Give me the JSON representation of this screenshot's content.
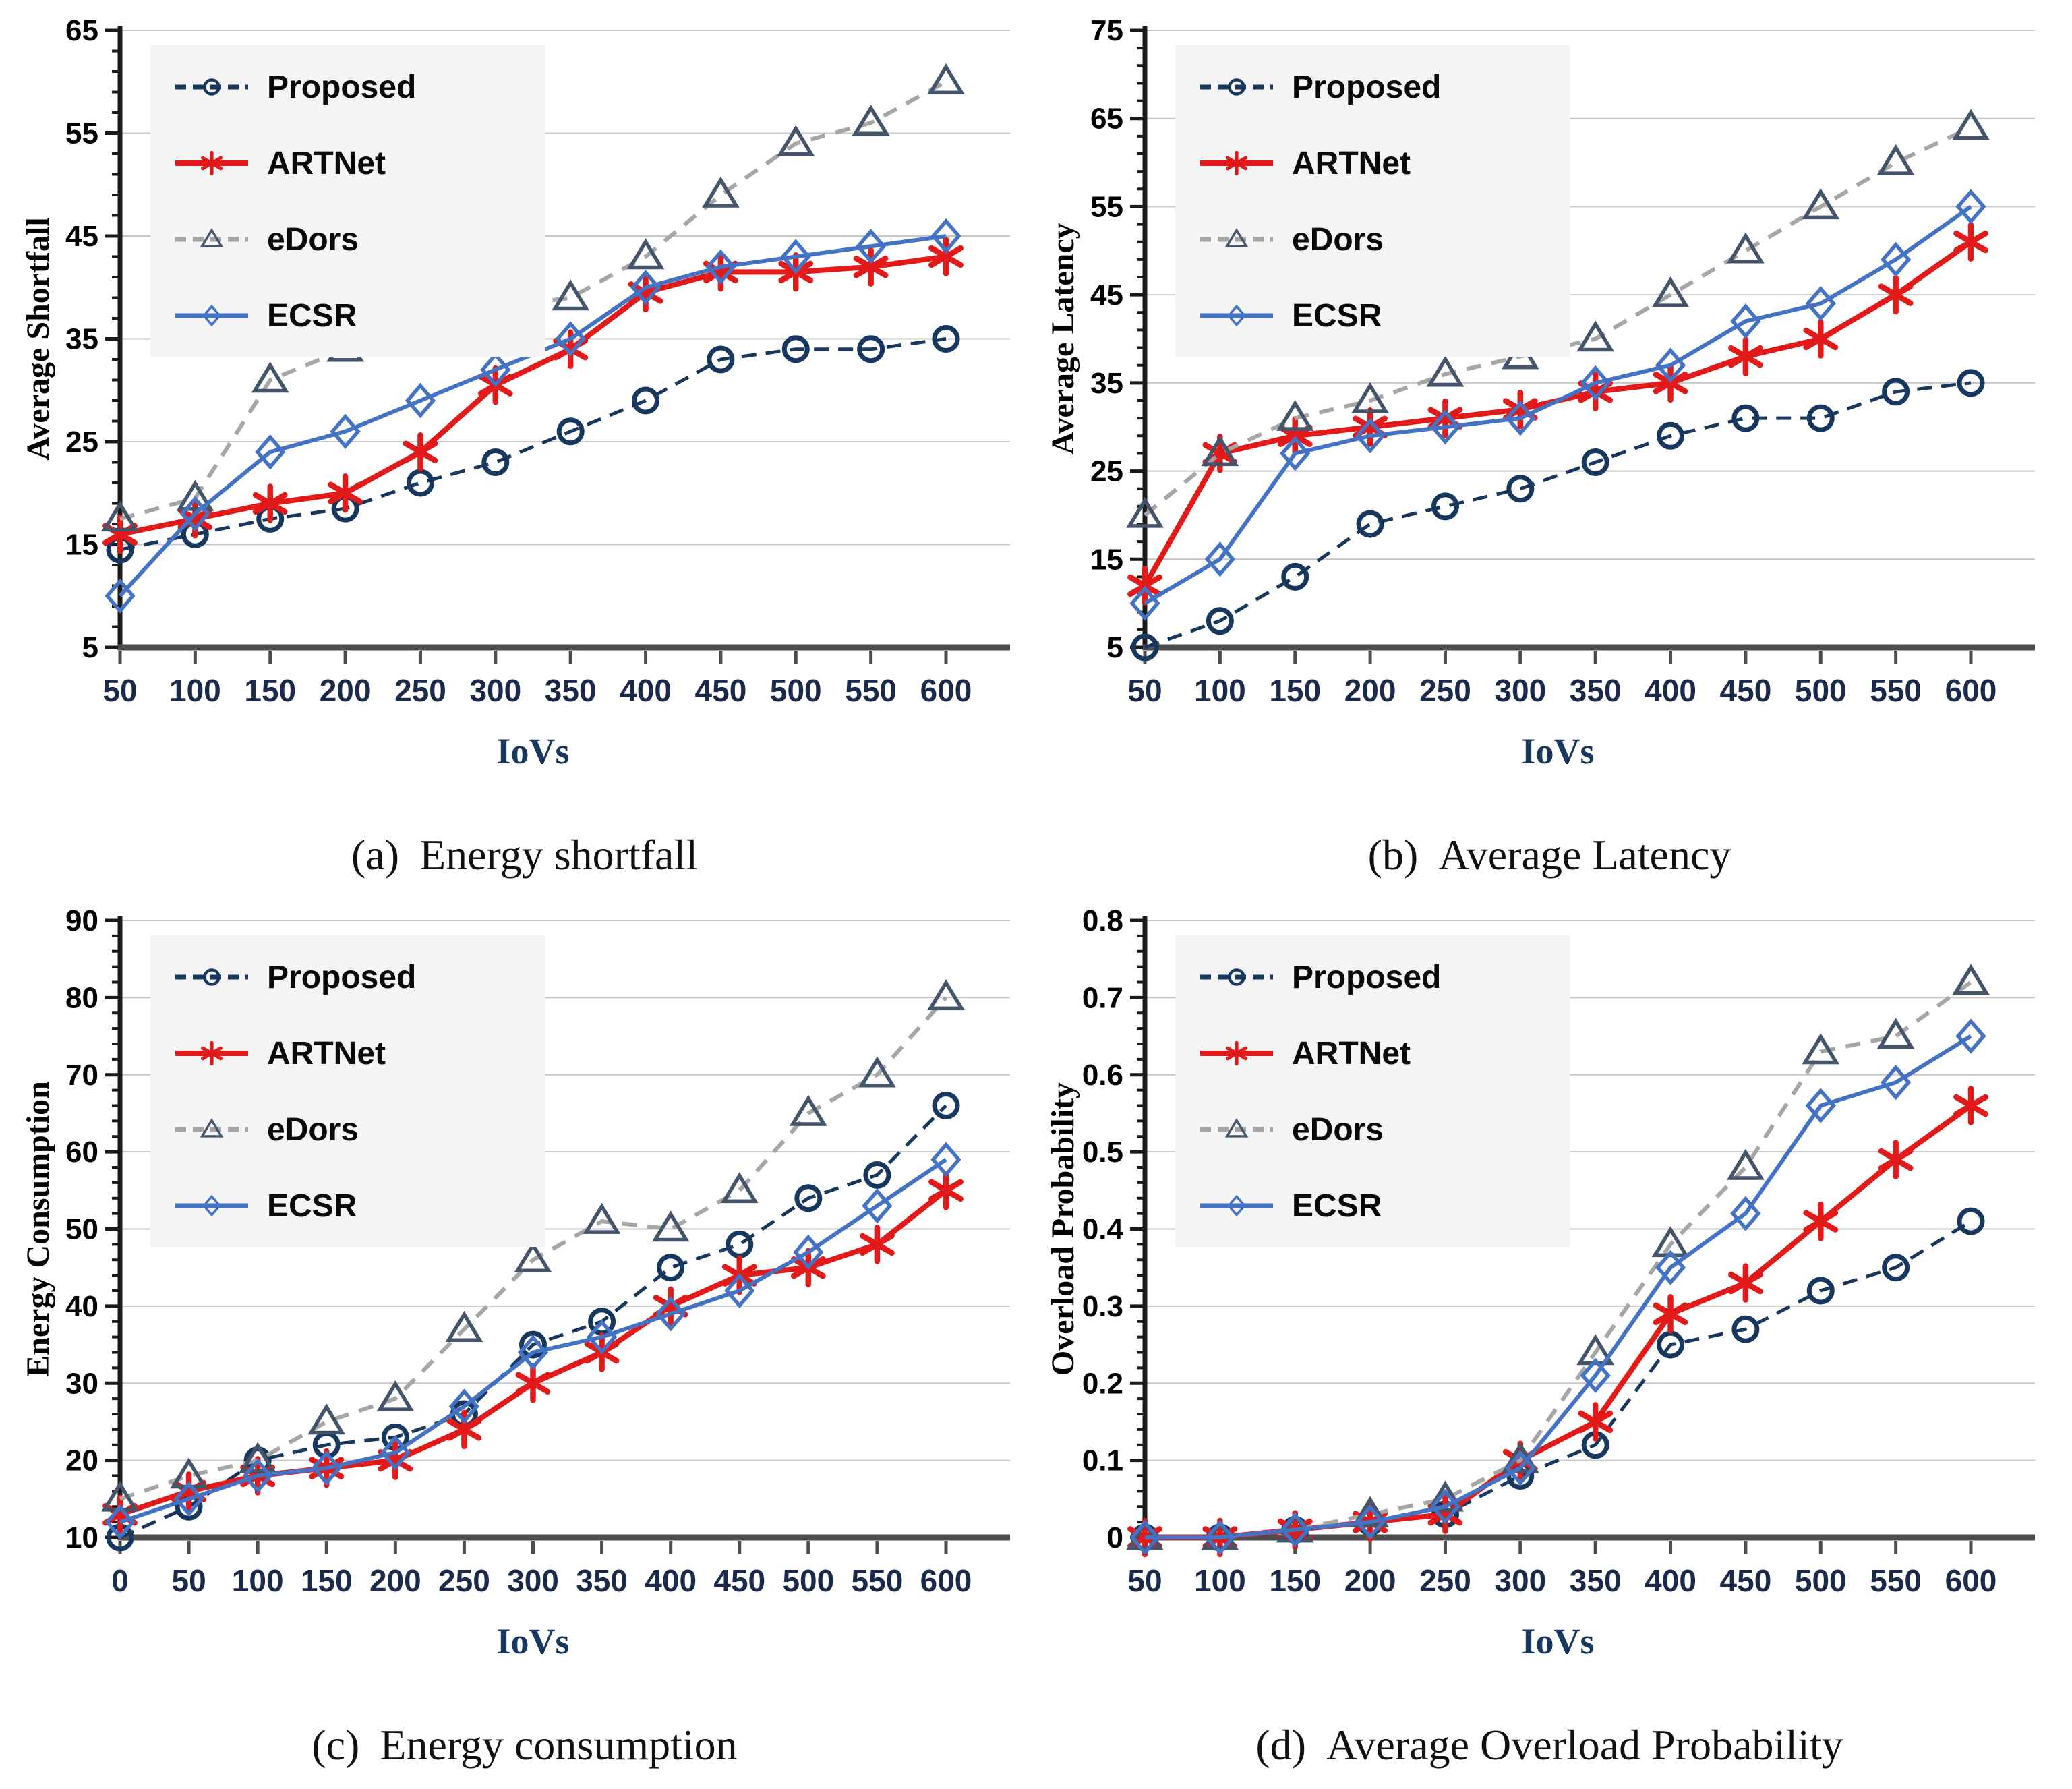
{
  "page": {
    "background": "#FFFFFF"
  },
  "colors": {
    "proposed": "#17375E",
    "artnet": "#E21A1A",
    "edors_line": "#A6A6A6",
    "edors_marker": "#44546A",
    "ecsr": "#4472C4",
    "gridline": "#C6C6C6",
    "x_axis": "#4D4D4D",
    "y_axis": "#1A1A1A",
    "x_tick_label": "#1B2A4A",
    "legend_bg": "#F4F4F4"
  },
  "chart_data": [
    {
      "type": "line",
      "caption_label": "(a)",
      "caption_text": "Energy shortfall",
      "xlabel": "IoVs",
      "ylabel": "Average Shortfall",
      "x": [
        50,
        100,
        150,
        200,
        250,
        300,
        350,
        400,
        450,
        500,
        550,
        600
      ],
      "ylim": [
        5,
        65
      ],
      "ytick_step": 10,
      "yminor_step": 2,
      "ytick_decimals": 0,
      "grid": true,
      "legend_position": "top-left",
      "series": [
        {
          "name": "Proposed",
          "color": "#17375E",
          "marker": "circle",
          "dash": "22 14",
          "width": 5,
          "values": [
            14.5,
            16,
            17.5,
            18.5,
            21,
            23,
            26,
            29,
            33,
            34,
            34,
            35
          ]
        },
        {
          "name": "ARTNet",
          "color": "#E21A1A",
          "marker": "asterisk",
          "dash": null,
          "width": 8,
          "values": [
            16,
            17.5,
            19,
            20,
            24,
            30.5,
            34,
            39.5,
            41.5,
            41.5,
            42,
            43
          ]
        },
        {
          "name": "eDors",
          "color": "#A6A6A6",
          "marker_color": "#44546A",
          "marker": "triangle",
          "dash": "22 16",
          "width": 6,
          "values": [
            17.5,
            19.5,
            31,
            34,
            36,
            38,
            39,
            43,
            49,
            54,
            56,
            60
          ]
        },
        {
          "name": "ECSR",
          "color": "#4472C4",
          "marker": "diamond",
          "dash": null,
          "width": 6,
          "values": [
            10,
            18,
            24,
            26,
            29,
            32,
            35,
            40,
            42,
            43,
            44,
            45
          ]
        }
      ]
    },
    {
      "type": "line",
      "caption_label": "(b)",
      "caption_text": "Average Latency",
      "xlabel": "IoVs",
      "ylabel": "Average Latency",
      "x": [
        50,
        100,
        150,
        200,
        250,
        300,
        350,
        400,
        450,
        500,
        550,
        600
      ],
      "ylim": [
        5,
        75
      ],
      "ytick_step": 10,
      "yminor_step": 2,
      "ytick_decimals": 0,
      "grid": true,
      "legend_position": "top-left",
      "series": [
        {
          "name": "Proposed",
          "color": "#17375E",
          "marker": "circle",
          "dash": "22 14",
          "width": 5,
          "values": [
            5,
            8,
            13,
            19,
            21,
            23,
            26,
            29,
            31,
            31,
            34,
            35
          ]
        },
        {
          "name": "ARTNet",
          "color": "#E21A1A",
          "marker": "asterisk",
          "dash": null,
          "width": 8,
          "values": [
            12,
            27,
            29,
            30,
            31,
            32,
            34,
            35,
            38,
            40,
            45,
            51
          ]
        },
        {
          "name": "eDors",
          "color": "#A6A6A6",
          "marker_color": "#44546A",
          "marker": "triangle",
          "dash": "22 16",
          "width": 6,
          "values": [
            20,
            27,
            31,
            33,
            36,
            38,
            40,
            45,
            50,
            55,
            60,
            64
          ]
        },
        {
          "name": "ECSR",
          "color": "#4472C4",
          "marker": "diamond",
          "dash": null,
          "width": 6,
          "values": [
            10,
            15,
            27,
            29,
            30,
            31,
            35,
            37,
            42,
            44,
            49,
            55
          ]
        }
      ]
    },
    {
      "type": "line",
      "caption_label": "(c)",
      "caption_text": "Energy consumption",
      "xlabel": "IoVs",
      "ylabel": "Energy Consumption",
      "x": [
        0,
        50,
        100,
        150,
        200,
        250,
        300,
        350,
        400,
        450,
        500,
        550,
        600
      ],
      "ylim": [
        10,
        90
      ],
      "ytick_step": 10,
      "yminor_step": 2,
      "ytick_decimals": 0,
      "grid": true,
      "legend_position": "top-left",
      "series": [
        {
          "name": "Proposed",
          "color": "#17375E",
          "marker": "circle",
          "dash": "22 14",
          "width": 5,
          "values": [
            10,
            14,
            20,
            22,
            23,
            26,
            35,
            38,
            45,
            48,
            54,
            57,
            66
          ]
        },
        {
          "name": "ARTNet",
          "color": "#E21A1A",
          "marker": "asterisk",
          "dash": null,
          "width": 8,
          "values": [
            13,
            16,
            18,
            19,
            20,
            24,
            30,
            34,
            40,
            44,
            45,
            48,
            55
          ]
        },
        {
          "name": "eDors",
          "color": "#A6A6A6",
          "marker_color": "#44546A",
          "marker": "triangle",
          "dash": "22 16",
          "width": 6,
          "values": [
            15,
            18,
            20,
            25,
            28,
            37,
            46,
            51,
            50,
            55,
            65,
            70,
            80
          ]
        },
        {
          "name": "ECSR",
          "color": "#4472C4",
          "marker": "diamond",
          "dash": null,
          "width": 6,
          "values": [
            12,
            15,
            18,
            19,
            21,
            27,
            34,
            36,
            39,
            42,
            47,
            53,
            59
          ]
        }
      ]
    },
    {
      "type": "line",
      "caption_label": "(d)",
      "caption_text": "Average Overload Probability",
      "xlabel": "IoVs",
      "ylabel": "Overload Probability",
      "x": [
        50,
        100,
        150,
        200,
        250,
        300,
        350,
        400,
        450,
        500,
        550,
        600
      ],
      "ylim": [
        0,
        0.8
      ],
      "ytick_step": 0.1,
      "yminor_step": 0.02,
      "ytick_decimals": 1,
      "grid": true,
      "legend_position": "top-left",
      "series": [
        {
          "name": "Proposed",
          "color": "#17375E",
          "marker": "circle",
          "dash": "22 14",
          "width": 5,
          "values": [
            0,
            0,
            0.01,
            0.02,
            0.03,
            0.08,
            0.12,
            0.25,
            0.27,
            0.32,
            0.35,
            0.41
          ]
        },
        {
          "name": "ARTNet",
          "color": "#E21A1A",
          "marker": "asterisk",
          "dash": null,
          "width": 8,
          "values": [
            0,
            0,
            0.01,
            0.02,
            0.03,
            0.1,
            0.15,
            0.29,
            0.33,
            0.41,
            0.49,
            0.56
          ]
        },
        {
          "name": "eDors",
          "color": "#A6A6A6",
          "marker_color": "#44546A",
          "marker": "triangle",
          "dash": "22 16",
          "width": 6,
          "values": [
            0,
            0,
            0.01,
            0.03,
            0.05,
            0.1,
            0.24,
            0.38,
            0.48,
            0.63,
            0.65,
            0.72
          ]
        },
        {
          "name": "ECSR",
          "color": "#4472C4",
          "marker": "diamond",
          "dash": null,
          "width": 6,
          "values": [
            0,
            0,
            0.01,
            0.02,
            0.04,
            0.09,
            0.21,
            0.35,
            0.42,
            0.56,
            0.59,
            0.65
          ]
        }
      ]
    }
  ]
}
